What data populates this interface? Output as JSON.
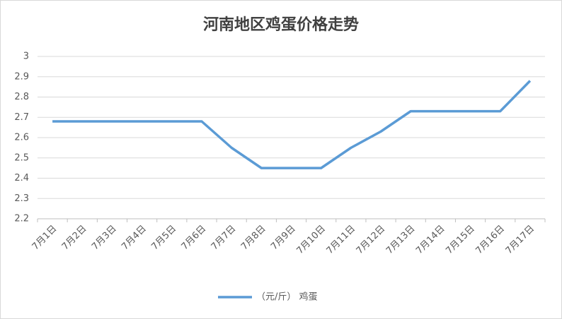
{
  "chart_data": {
    "type": "line",
    "title": "河南地区鸡蛋价格走势",
    "categories": [
      "7月1日",
      "7月2日",
      "7月3日",
      "7月4日",
      "7月5日",
      "7月6日",
      "7月7日",
      "7月8日",
      "7月9日",
      "7月10日",
      "7月11日",
      "7月12日",
      "7月13日",
      "7月14日",
      "7月15日",
      "7月16日",
      "7月17日"
    ],
    "series": [
      {
        "name": "（元/斤） 鸡蛋",
        "color": "#5b9bd5",
        "values": [
          2.68,
          2.68,
          2.68,
          2.68,
          2.68,
          2.68,
          2.55,
          2.45,
          2.45,
          2.45,
          2.55,
          2.63,
          2.73,
          2.73,
          2.73,
          2.73,
          2.88
        ]
      }
    ],
    "ylim": [
      2.2,
      3
    ],
    "yticks": [
      2.2,
      2.3,
      2.4,
      2.5,
      2.6,
      2.7,
      2.8,
      2.9,
      3
    ],
    "grid": true,
    "legend": "bottom"
  }
}
